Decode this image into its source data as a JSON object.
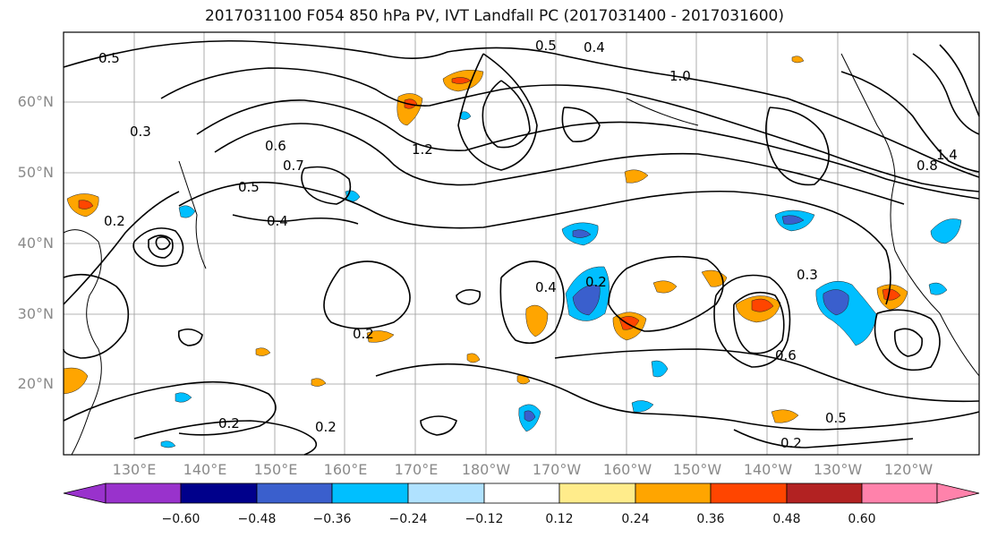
{
  "title": "2017031100 F054 850 hPa PV, IVT Landfall PC (2017031400 - 2017031600)",
  "lat_labels": [
    "60°N",
    "50°N",
    "40°N",
    "30°N",
    "20°N"
  ],
  "lon_labels": [
    "130°E",
    "140°E",
    "150°E",
    "160°E",
    "170°E",
    "180°W",
    "170°W",
    "160°W",
    "150°W",
    "140°W",
    "130°W",
    "120°W"
  ],
  "contour_labels": [
    "0.5",
    "0.4",
    "0.5",
    "1.0",
    "0.3",
    "1.2",
    "0.6",
    "0.7",
    "0.5",
    "0.4",
    "0.2",
    "0.4",
    "0.2",
    "0.3",
    "0.2",
    "0.6",
    "0.5",
    "0.2",
    "1.4",
    "0.8",
    "0.2",
    "0.2"
  ],
  "colorbar": {
    "tick_labels": [
      "−0.60",
      "−0.48",
      "−0.36",
      "−0.24",
      "−0.12",
      "0.12",
      "0.24",
      "0.36",
      "0.48",
      "0.60"
    ],
    "colors": [
      "#9932cc",
      "#00008b",
      "#3a5fcd",
      "#00bfff",
      "#b0e2ff",
      "#ffffff",
      "#ffec8b",
      "#ffa500",
      "#ff4500",
      "#b22222",
      "#ff82ab"
    ]
  },
  "colors": {
    "grid": "#9a9a9a",
    "contour": "#000000",
    "axis_label": "#8a8a8a"
  }
}
